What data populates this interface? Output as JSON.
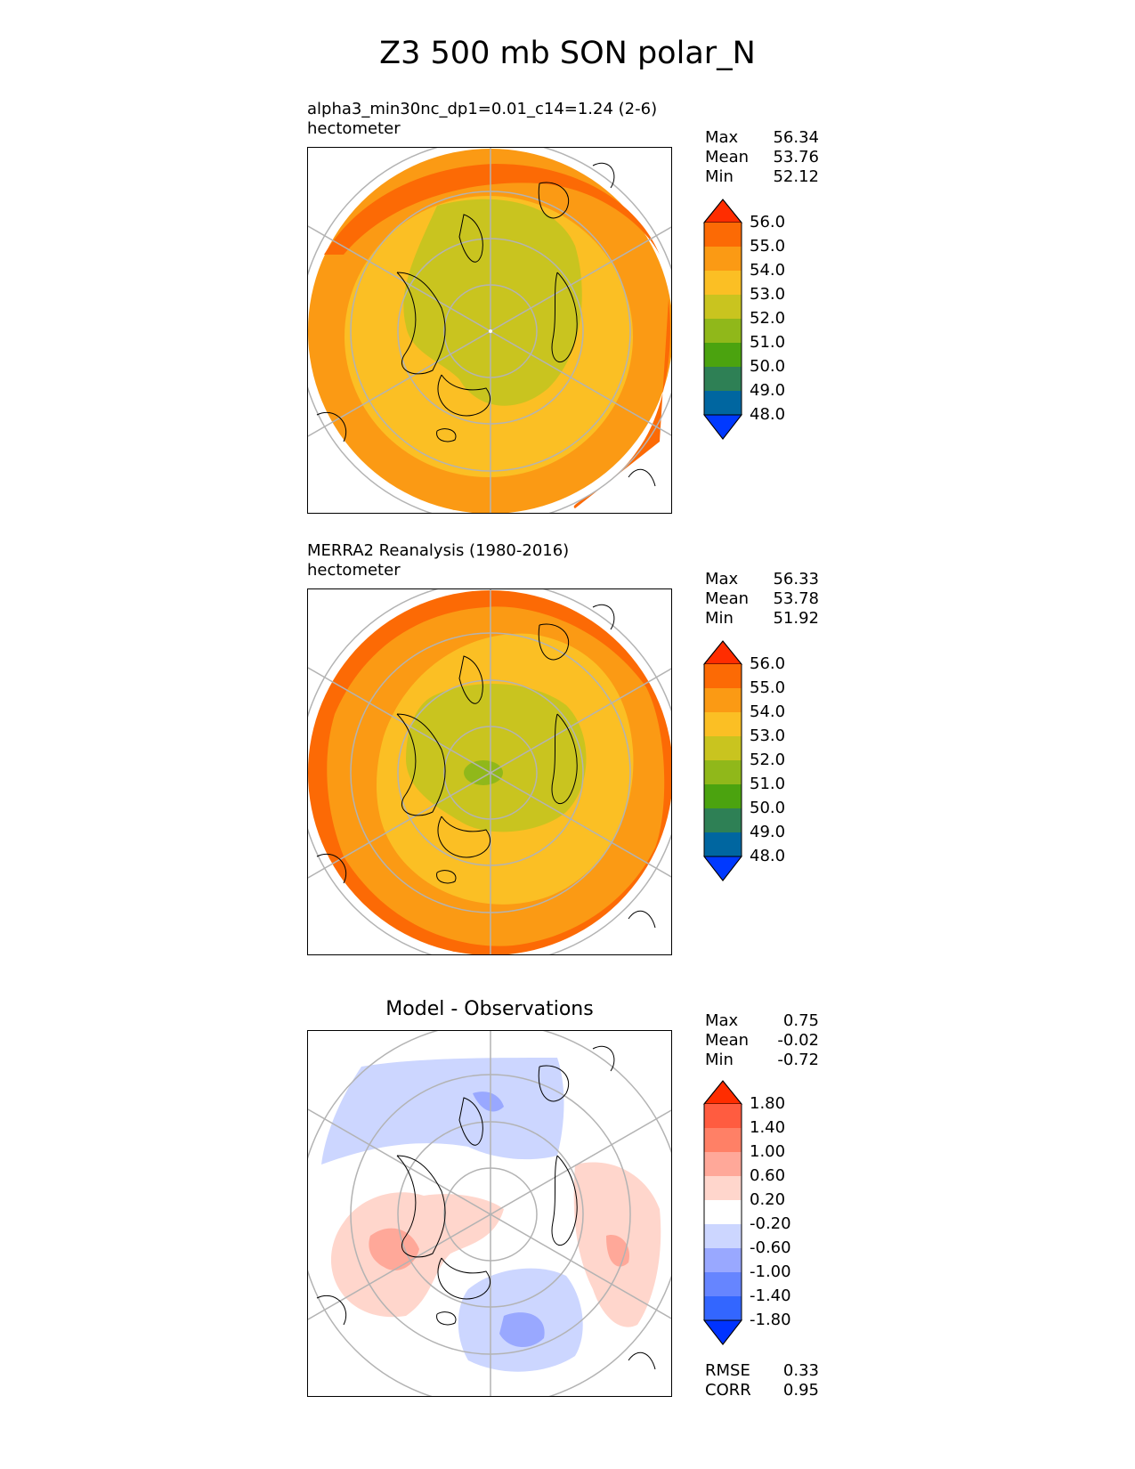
{
  "title": "Z3 500 mb SON polar_N",
  "colors": {
    "abs": [
      "#0039ff",
      "#0066a0",
      "#2e8055",
      "#4ba30f",
      "#90b81a",
      "#c9c41f",
      "#fbbf24",
      "#fb9a14",
      "#fc6a05",
      "#ff2d00"
    ],
    "diff": [
      "#0033ff",
      "#3366ff",
      "#6685ff",
      "#99a8ff",
      "#ccd6ff",
      "#ffffff",
      "#ffd6cc",
      "#ffa899",
      "#ff8066",
      "#ff5c40",
      "#ff2d00"
    ],
    "ocean": "#ffffff",
    "coast": "#000000",
    "grid": "#b3b3b3"
  },
  "panels": [
    {
      "title_line1": "alpha3_min30nc_dp1=0.01_c14=1.24 (2-6)",
      "title_line2": "hectometer",
      "stats": {
        "max_label": "Max",
        "max": "56.34",
        "mean_label": "Mean",
        "mean": "53.76",
        "min_label": "Min",
        "min": "52.12"
      },
      "colorbar_ticks": [
        "56.0",
        "55.0",
        "54.0",
        "53.0",
        "52.0",
        "51.0",
        "50.0",
        "49.0",
        "48.0"
      ]
    },
    {
      "title_line1": "MERRA2 Reanalysis (1980-2016)",
      "title_line2": "hectometer",
      "stats": {
        "max_label": "Max",
        "max": "56.33",
        "mean_label": "Mean",
        "mean": "53.78",
        "min_label": "Min",
        "min": "51.92"
      },
      "colorbar_ticks": [
        "56.0",
        "55.0",
        "54.0",
        "53.0",
        "52.0",
        "51.0",
        "50.0",
        "49.0",
        "48.0"
      ]
    },
    {
      "title": "Model - Observations",
      "stats": {
        "max_label": "Max",
        "max": "0.75",
        "mean_label": "Mean",
        "mean": "-0.02",
        "min_label": "Min",
        "min": "-0.72"
      },
      "colorbar_ticks": [
        "1.80",
        "1.40",
        "1.00",
        "0.60",
        "0.20",
        "-0.20",
        "-0.60",
        "-1.00",
        "-1.40",
        "-1.80"
      ],
      "rmse_label": "RMSE",
      "rmse": "0.33",
      "corr_label": "CORR",
      "corr": "0.95"
    }
  ],
  "chart_data": {
    "type": "heatmap",
    "projection": "polar stereographic (North)",
    "units": "hectometer",
    "panels": [
      {
        "name": "alpha3_min30nc_dp1=0.01_c14=1.24 (2-6)",
        "max": 56.34,
        "mean": 53.76,
        "min": 52.12,
        "contour_levels": [
          48,
          49,
          50,
          51,
          52,
          53,
          54,
          55,
          56
        ]
      },
      {
        "name": "MERRA2 Reanalysis (1980-2016)",
        "max": 56.33,
        "mean": 53.78,
        "min": 51.92,
        "contour_levels": [
          48,
          49,
          50,
          51,
          52,
          53,
          54,
          55,
          56
        ]
      },
      {
        "name": "Model - Observations",
        "max": 0.75,
        "mean": -0.02,
        "min": -0.72,
        "contour_levels": [
          -1.8,
          -1.4,
          -1.0,
          -0.6,
          -0.2,
          0.2,
          0.6,
          1.0,
          1.4,
          1.8
        ],
        "rmse": 0.33,
        "corr": 0.95
      }
    ]
  }
}
